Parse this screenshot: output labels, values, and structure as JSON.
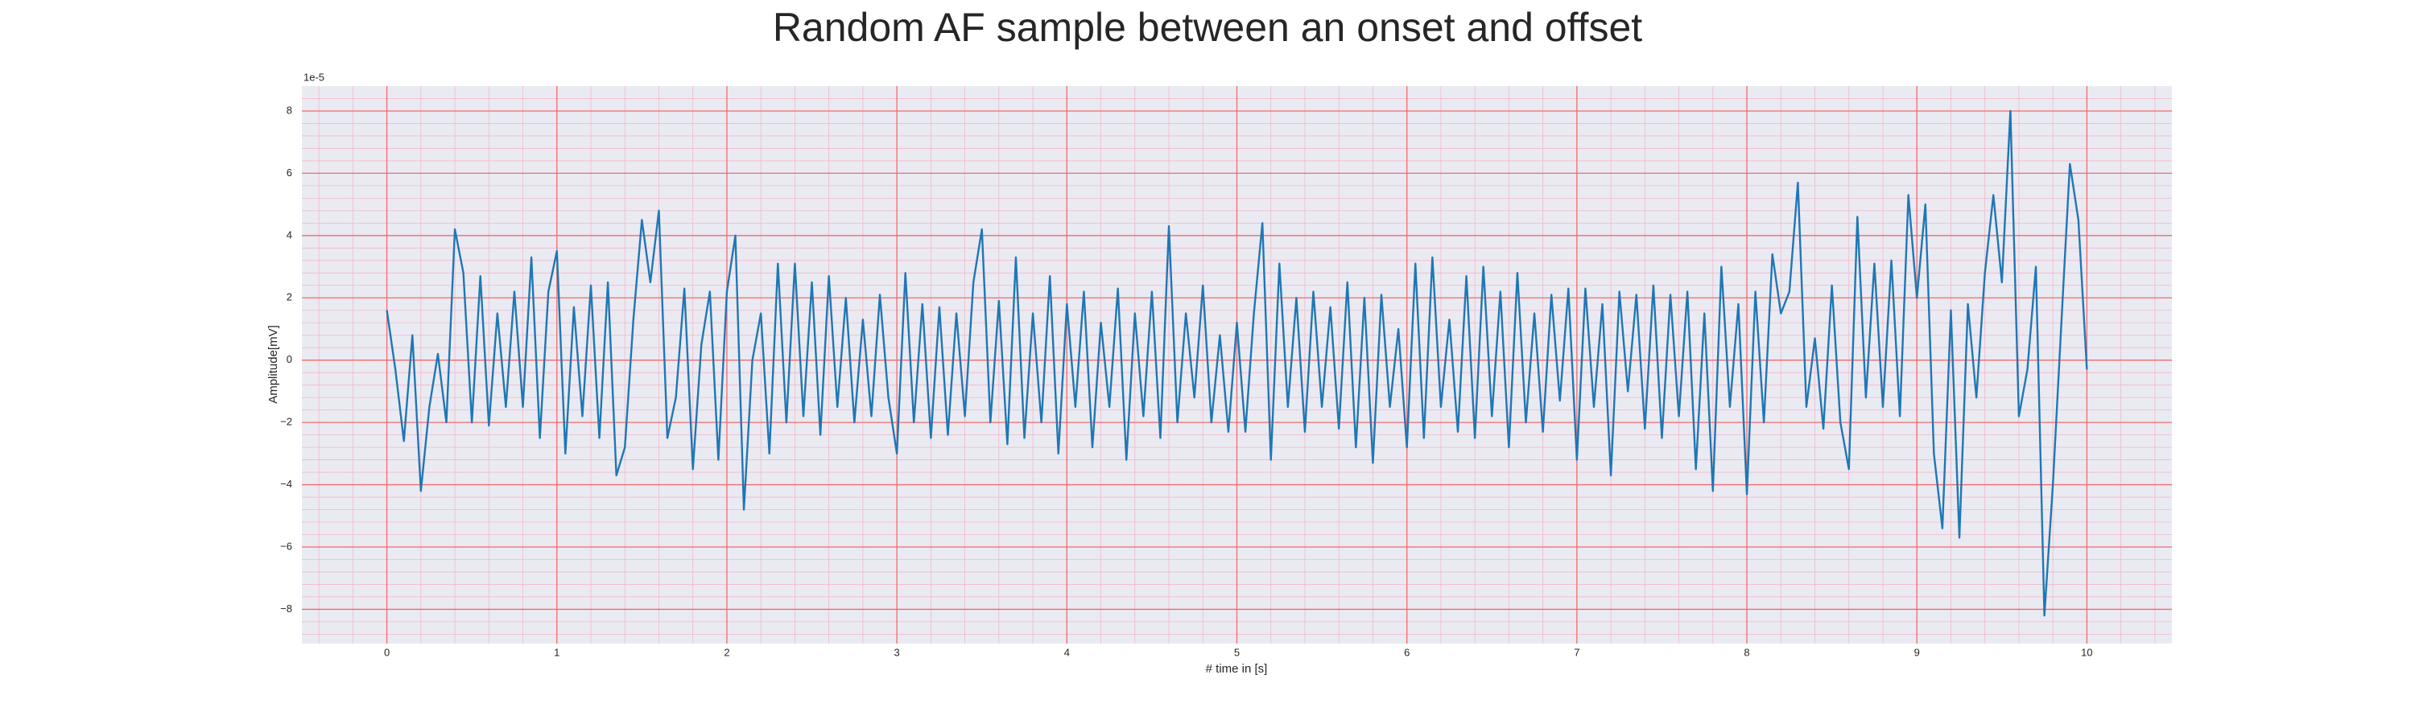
{
  "chart_data": {
    "type": "line",
    "title": "Random AF sample between an onset and offset",
    "x_label": "# time in [s]",
    "y_label": "Amplitude[mV]",
    "y_offset_label": "1e-5",
    "xlim": [
      -0.5,
      10.5
    ],
    "ylim": [
      -9.1,
      8.8
    ],
    "xticks": [
      0,
      1,
      2,
      3,
      4,
      5,
      6,
      7,
      8,
      9,
      10
    ],
    "yticks": [
      {
        "value": -8,
        "label": "−8"
      },
      {
        "value": -6,
        "label": "−6"
      },
      {
        "value": -4,
        "label": "−4"
      },
      {
        "value": -2,
        "label": "−2"
      },
      0,
      2,
      4,
      6,
      8
    ],
    "grid": true,
    "minor_grid": true,
    "grid_color": "#f26b6b",
    "minor_grid_color": "#f2b8c8",
    "background": "#eaeaf2",
    "x": [
      0,
      0.05,
      0.1,
      0.15,
      0.2,
      0.25,
      0.3,
      0.35,
      0.4,
      0.45,
      0.5,
      0.55,
      0.6,
      0.65,
      0.7,
      0.75,
      0.8,
      0.85,
      0.9,
      0.95,
      1,
      1.05,
      1.1,
      1.15,
      1.2,
      1.25,
      1.3,
      1.35,
      1.4,
      1.45,
      1.5,
      1.55,
      1.6,
      1.65,
      1.7,
      1.75,
      1.8,
      1.85,
      1.9,
      1.95,
      2,
      2.05,
      2.1,
      2.15,
      2.2,
      2.25,
      2.3,
      2.35,
      2.4,
      2.45,
      2.5,
      2.55,
      2.6,
      2.65,
      2.7,
      2.75,
      2.8,
      2.85,
      2.9,
      2.95,
      3,
      3.05,
      3.1,
      3.15,
      3.2,
      3.25,
      3.3,
      3.35,
      3.4,
      3.45,
      3.5,
      3.55,
      3.6,
      3.65,
      3.7,
      3.75,
      3.8,
      3.85,
      3.9,
      3.95,
      4,
      4.05,
      4.1,
      4.15,
      4.2,
      4.25,
      4.3,
      4.35,
      4.4,
      4.45,
      4.5,
      4.55,
      4.6,
      4.65,
      4.7,
      4.75,
      4.8,
      4.85,
      4.9,
      4.95,
      5,
      5.05,
      5.1,
      5.15,
      5.2,
      5.25,
      5.3,
      5.35,
      5.4,
      5.45,
      5.5,
      5.55,
      5.6,
      5.65,
      5.7,
      5.75,
      5.8,
      5.85,
      5.9,
      5.95,
      6,
      6.05,
      6.1,
      6.15,
      6.2,
      6.25,
      6.3,
      6.35,
      6.4,
      6.45,
      6.5,
      6.55,
      6.6,
      6.65,
      6.7,
      6.75,
      6.8,
      6.85,
      6.9,
      6.95,
      7,
      7.05,
      7.1,
      7.15,
      7.2,
      7.25,
      7.3,
      7.35,
      7.4,
      7.45,
      7.5,
      7.55,
      7.6,
      7.65,
      7.7,
      7.75,
      7.8,
      7.85,
      7.9,
      7.95,
      8,
      8.05,
      8.1,
      8.15,
      8.2,
      8.25,
      8.3,
      8.35,
      8.4,
      8.45,
      8.5,
      8.55,
      8.6,
      8.65,
      8.7,
      8.75,
      8.8,
      8.85,
      8.9,
      8.95,
      9,
      9.05,
      9.1,
      9.15,
      9.2,
      9.25,
      9.3,
      9.35,
      9.4,
      9.45,
      9.5,
      9.55,
      9.6,
      9.65,
      9.7,
      9.75,
      9.8,
      9.85,
      9.9,
      9.95,
      10
    ],
    "series": [
      {
        "color": "#1f77b4",
        "values": [
          1.6,
          -0.3,
          -2.6,
          0.8,
          -4.2,
          -1.5,
          0.2,
          -2,
          4.2,
          2.8,
          -2,
          2.7,
          -2.1,
          1.5,
          -1.5,
          2.2,
          -1.5,
          3.3,
          -2.5,
          2.2,
          3.5,
          -3,
          1.7,
          -1.8,
          2.4,
          -2.5,
          2.5,
          -3.7,
          -2.8,
          1.3,
          4.5,
          2.5,
          4.8,
          -2.5,
          -1.2,
          2.3,
          -3.5,
          0.5,
          2.2,
          -3.2,
          2.2,
          4,
          -4.8,
          0,
          1.5,
          -3,
          3.1,
          -2,
          3.1,
          -1.8,
          2.5,
          -2.4,
          2.7,
          -1.5,
          2,
          -2,
          1.3,
          -1.8,
          2.1,
          -1.2,
          -3,
          2.8,
          -2,
          1.8,
          -2.5,
          1.7,
          -2.4,
          1.5,
          -1.8,
          2.5,
          4.2,
          -2,
          1.9,
          -2.7,
          3.3,
          -2.5,
          1.5,
          -2,
          2.7,
          -3,
          1.8,
          -1.5,
          2.2,
          -2.8,
          1.2,
          -1.5,
          2.3,
          -3.2,
          1.5,
          -1.8,
          2.2,
          -2.5,
          4.3,
          -2,
          1.5,
          -1.2,
          2.4,
          -2,
          0.8,
          -2.3,
          1.2,
          -2.3,
          1.5,
          4.4,
          -3.2,
          3.1,
          -1.5,
          2,
          -2.3,
          2.2,
          -1.5,
          1.7,
          -2.2,
          2.5,
          -2.8,
          2,
          -3.3,
          2.1,
          -1.5,
          1,
          -2.8,
          3.1,
          -2.5,
          3.3,
          -1.5,
          1.3,
          -2.3,
          2.7,
          -2.5,
          3,
          -1.8,
          2.2,
          -2.8,
          2.8,
          -2,
          1.5,
          -2.3,
          2.1,
          -1.3,
          2.3,
          -3.2,
          2.3,
          -1.5,
          1.8,
          -3.7,
          2.2,
          -1,
          2.1,
          -2.2,
          2.4,
          -2.5,
          2.1,
          -1.8,
          2.2,
          -3.5,
          1.5,
          -4.2,
          3,
          -1.5,
          1.8,
          -4.3,
          2.2,
          -2,
          3.4,
          1.5,
          2.2,
          5.7,
          -1.5,
          0.7,
          -2.2,
          2.4,
          -2,
          -3.5,
          4.6,
          -1.2,
          3.1,
          -1.5,
          3.2,
          -1.8,
          5.3,
          2,
          5,
          -3,
          -5.4,
          1.6,
          -5.7,
          1.8,
          -1.2,
          2.8,
          5.3,
          2.5,
          8,
          -1.8,
          -0.3,
          3,
          -8.2,
          -4,
          1.2,
          6.3,
          4.5,
          -0.3
        ]
      }
    ]
  }
}
